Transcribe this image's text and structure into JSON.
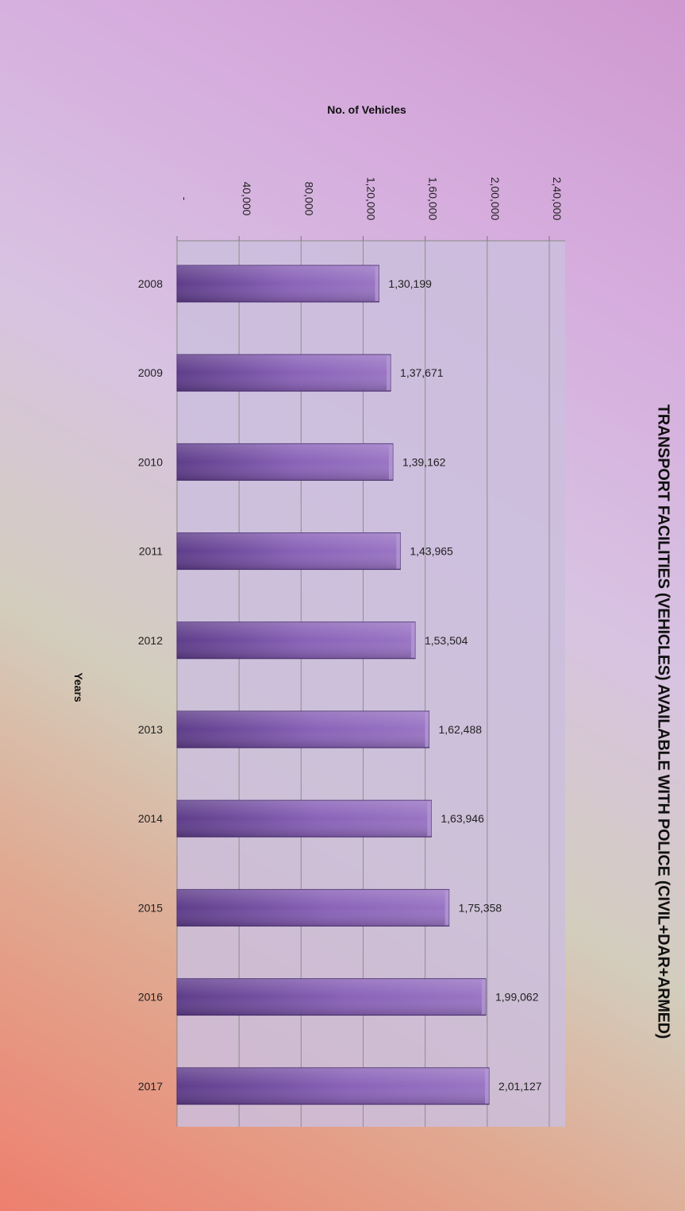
{
  "chart_data": {
    "type": "bar",
    "orientation": "horizontal",
    "title": "TRANSPORT FACILITIES (VEHICLES) AVAILABLE WITH    POLICE (CIVIL+DAR+ARMED)",
    "xlabel": "No. of Vehicles",
    "ylabel": "Years",
    "categories": [
      "2008",
      "2009",
      "2010",
      "2011",
      "2012",
      "2013",
      "2014",
      "2015",
      "2016",
      "2017"
    ],
    "values": [
      130199,
      137671,
      139162,
      143965,
      153504,
      162488,
      163946,
      175358,
      199062,
      201127
    ],
    "value_labels": [
      "1,30,199",
      "1,37,671",
      "1,39,162",
      "1,43,965",
      "1,53,504",
      "1,62,488",
      "1,63,946",
      "1,75,358",
      "1,99,062",
      "2,01,127"
    ],
    "xlim": [
      0,
      250000
    ],
    "ticks": [
      0,
      40000,
      80000,
      120000,
      160000,
      200000,
      240000
    ],
    "tick_labels": [
      "-",
      "40,000",
      "80,000",
      "1,20,000",
      "1,60,000",
      "2,00,000",
      "2,40,000"
    ],
    "grid": true,
    "legend": "none",
    "bar_color": "#7a55a6",
    "plot_bg": "#cbbedd"
  }
}
